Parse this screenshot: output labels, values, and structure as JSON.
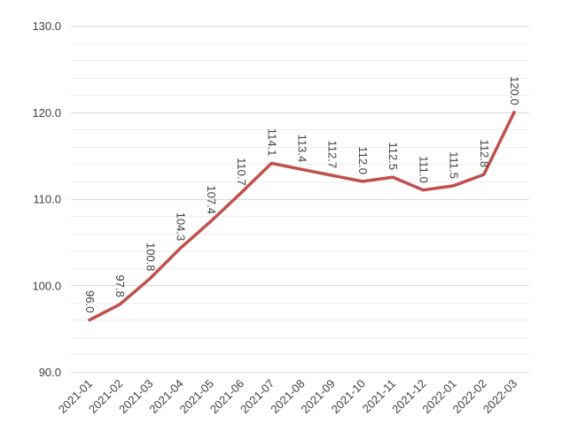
{
  "chart_data": {
    "type": "line",
    "title": "",
    "xlabel": "",
    "ylabel": "",
    "categories": [
      "2021-01",
      "2021-02",
      "2021-03",
      "2021-04",
      "2021-05",
      "2021-06",
      "2021-07",
      "2021-08",
      "2021-09",
      "2021-10",
      "2021-11",
      "2021-12",
      "2022-01",
      "2022-02",
      "2022-03"
    ],
    "series": [
      {
        "values": [
          96.0,
          97.8,
          100.8,
          104.3,
          107.4,
          110.7,
          114.1,
          113.4,
          112.7,
          112.0,
          112.5,
          111.0,
          111.5,
          112.8,
          120.0
        ],
        "labels": [
          "96.0",
          "97.8",
          "100.8",
          "104.3",
          "107.4",
          "110.7",
          "114.1",
          "113.4",
          "112.7",
          "112.0",
          "112.5",
          "111.0",
          "111.5",
          "112.8",
          "120.0"
        ],
        "color": "#c0504d"
      }
    ],
    "ylim": [
      90,
      130
    ],
    "yticks": [
      90,
      100,
      110,
      120,
      130
    ],
    "ytick_labels": [
      "90.0",
      "100.0",
      "110.0",
      "120.0",
      "130.0"
    ],
    "grid": true,
    "minor_grid": true,
    "legend": "none",
    "colors": {
      "line": "#c0504d",
      "grid_major": "#d9d9d9",
      "grid_minor": "#eeeeee",
      "text": "#404040"
    }
  }
}
